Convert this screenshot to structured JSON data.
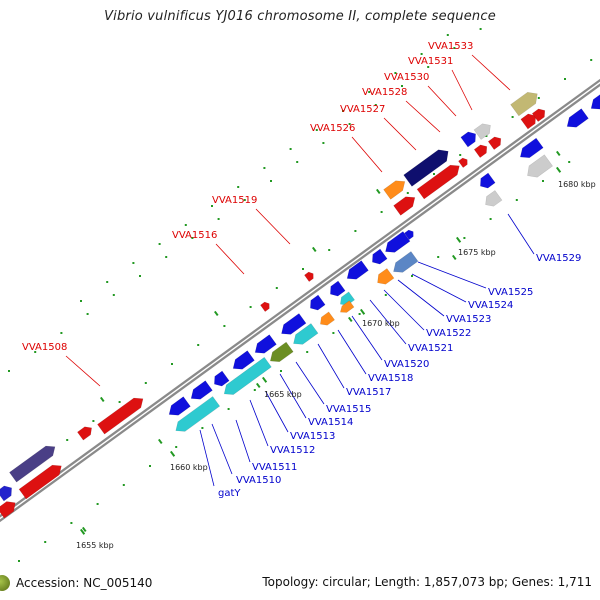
{
  "title": "Vibrio vulnificus YJ016 chromosome II, complete sequence",
  "footer": {
    "accession": "Accession: NC_005140",
    "stats": "Topology: circular; Length: 1,857,073 bp; Genes: 1,711"
  },
  "colors": {
    "forward_label": "#dd0000",
    "reverse_label": "#0000cc",
    "backbone": "#8a8a8a",
    "tick_minor": "#229922"
  },
  "ticks": [
    {
      "label": "1655 kbp"
    },
    {
      "label": "1660 kbp"
    },
    {
      "label": "1665 kbp"
    },
    {
      "label": "1670 kbp"
    },
    {
      "label": "1675 kbp"
    },
    {
      "label": "1680 kbp"
    }
  ],
  "labels_top": [
    {
      "text": "VVA1508"
    },
    {
      "text": "VVA1516"
    },
    {
      "text": "VVA1519"
    },
    {
      "text": "VVA1526"
    },
    {
      "text": "VVA1527"
    },
    {
      "text": "VVA1528"
    },
    {
      "text": "VVA1530"
    },
    {
      "text": "VVA1531"
    },
    {
      "text": "VVA1533"
    }
  ],
  "labels_bottom": [
    {
      "text": "gatY"
    },
    {
      "text": "VVA1510"
    },
    {
      "text": "VVA1511"
    },
    {
      "text": "VVA1512"
    },
    {
      "text": "VVA1513"
    },
    {
      "text": "VVA1514"
    },
    {
      "text": "VVA1515"
    },
    {
      "text": "VVA1517"
    },
    {
      "text": "VVA1518"
    },
    {
      "text": "VVA1520"
    },
    {
      "text": "VVA1521"
    },
    {
      "text": "VVA1522"
    },
    {
      "text": "VVA1523"
    },
    {
      "text": "VVA1524"
    },
    {
      "text": "VVA1525"
    },
    {
      "text": "VVA1529"
    }
  ]
}
